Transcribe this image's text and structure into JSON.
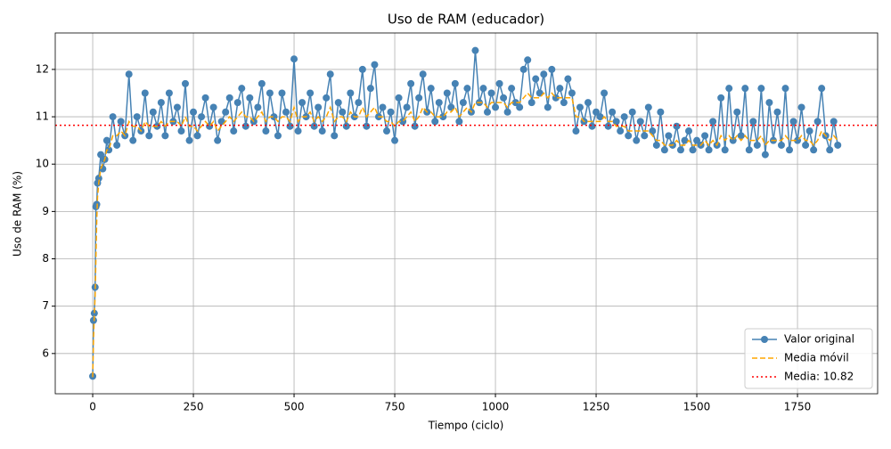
{
  "chart_data": {
    "type": "line",
    "title": "Uso de RAM (educador)",
    "xlabel": "Tiempo (ciclo)",
    "ylabel": "Uso de RAM (%)",
    "x": [
      0,
      2,
      4,
      6,
      8,
      10,
      12,
      15,
      20,
      25,
      30,
      35,
      40,
      50,
      60,
      70,
      80,
      90,
      100,
      110,
      120,
      130,
      140,
      150,
      160,
      170,
      180,
      190,
      200,
      210,
      220,
      230,
      240,
      250,
      260,
      270,
      280,
      290,
      300,
      310,
      320,
      330,
      340,
      350,
      360,
      370,
      380,
      390,
      400,
      410,
      420,
      430,
      440,
      450,
      460,
      470,
      480,
      490,
      500,
      510,
      520,
      530,
      540,
      550,
      560,
      570,
      580,
      590,
      600,
      610,
      620,
      630,
      640,
      650,
      660,
      670,
      680,
      690,
      700,
      710,
      720,
      730,
      740,
      750,
      760,
      770,
      780,
      790,
      800,
      810,
      820,
      830,
      840,
      850,
      860,
      870,
      880,
      890,
      900,
      910,
      920,
      930,
      940,
      950,
      960,
      970,
      980,
      990,
      1000,
      1010,
      1020,
      1030,
      1040,
      1050,
      1060,
      1070,
      1080,
      1090,
      1100,
      1110,
      1120,
      1130,
      1140,
      1150,
      1160,
      1170,
      1180,
      1190,
      1200,
      1210,
      1220,
      1230,
      1240,
      1250,
      1260,
      1270,
      1280,
      1290,
      1300,
      1310,
      1320,
      1330,
      1340,
      1350,
      1360,
      1370,
      1380,
      1390,
      1400,
      1410,
      1420,
      1430,
      1440,
      1450,
      1460,
      1470,
      1480,
      1490,
      1500,
      1510,
      1520,
      1530,
      1540,
      1550,
      1560,
      1570,
      1580,
      1590,
      1600,
      1610,
      1620,
      1630,
      1640,
      1650,
      1660,
      1670,
      1680,
      1690,
      1700,
      1710,
      1720,
      1730,
      1740,
      1750,
      1760,
      1770,
      1780,
      1790,
      1800,
      1810,
      1820,
      1830,
      1840,
      1850
    ],
    "series": [
      {
        "name": "Valor original",
        "color": "#4682b4",
        "style": "solid",
        "marker": true,
        "values": [
          5.52,
          6.7,
          6.85,
          7.4,
          9.1,
          9.15,
          9.6,
          9.7,
          10.2,
          9.9,
          10.1,
          10.5,
          10.3,
          11.0,
          10.4,
          10.9,
          10.6,
          11.9,
          10.5,
          11.0,
          10.7,
          11.5,
          10.6,
          11.1,
          10.8,
          11.3,
          10.6,
          11.5,
          10.9,
          11.2,
          10.7,
          11.7,
          10.5,
          11.1,
          10.6,
          11.0,
          11.4,
          10.8,
          11.2,
          10.5,
          10.9,
          11.1,
          11.4,
          10.7,
          11.3,
          11.6,
          10.8,
          11.4,
          10.9,
          11.2,
          11.7,
          10.7,
          11.5,
          11.0,
          10.6,
          11.5,
          11.1,
          10.8,
          12.22,
          10.7,
          11.3,
          11.0,
          11.5,
          10.8,
          11.2,
          10.7,
          11.4,
          11.9,
          10.6,
          11.3,
          11.1,
          10.8,
          11.5,
          11.0,
          11.3,
          12.0,
          10.8,
          11.6,
          12.1,
          11.0,
          11.2,
          10.7,
          11.1,
          10.5,
          11.4,
          10.9,
          11.2,
          11.7,
          10.8,
          11.4,
          11.9,
          11.1,
          11.6,
          10.9,
          11.3,
          11.0,
          11.5,
          11.2,
          11.7,
          10.9,
          11.3,
          11.6,
          11.1,
          12.4,
          11.3,
          11.6,
          11.1,
          11.5,
          11.2,
          11.7,
          11.4,
          11.1,
          11.6,
          11.3,
          11.2,
          12.0,
          12.2,
          11.3,
          11.8,
          11.5,
          11.9,
          11.2,
          12.0,
          11.4,
          11.6,
          11.3,
          11.8,
          11.5,
          10.7,
          11.2,
          10.9,
          11.3,
          10.8,
          11.1,
          11.0,
          11.5,
          10.8,
          11.1,
          10.9,
          10.7,
          11.0,
          10.6,
          11.1,
          10.5,
          10.9,
          10.6,
          11.2,
          10.7,
          10.4,
          11.1,
          10.3,
          10.6,
          10.4,
          10.8,
          10.3,
          10.5,
          10.7,
          10.3,
          10.5,
          10.4,
          10.6,
          10.3,
          10.9,
          10.4,
          11.4,
          10.3,
          11.6,
          10.5,
          11.1,
          10.6,
          11.6,
          10.3,
          10.9,
          10.4,
          11.6,
          10.2,
          11.3,
          10.5,
          11.1,
          10.4,
          11.6,
          10.3,
          10.9,
          10.5,
          11.2,
          10.4,
          10.7,
          10.3,
          10.9,
          11.6,
          10.6,
          10.3,
          10.9,
          10.4
        ]
      },
      {
        "name": "Media móvil",
        "color": "#ffa500",
        "style": "dashed",
        "marker": false,
        "values": [
          5.5,
          6.3,
          6.8,
          7.2,
          8.0,
          8.8,
          9.3,
          9.6,
          9.9,
          10.0,
          10.1,
          10.3,
          10.3,
          10.6,
          10.6,
          10.7,
          10.6,
          10.9,
          10.8,
          10.8,
          10.7,
          10.9,
          10.8,
          10.8,
          10.8,
          10.9,
          10.8,
          10.9,
          10.9,
          10.9,
          10.8,
          11.0,
          10.8,
          10.8,
          10.7,
          10.8,
          10.9,
          10.8,
          10.9,
          10.7,
          10.8,
          10.9,
          11.0,
          10.9,
          11.0,
          11.1,
          11.0,
          11.0,
          10.9,
          11.0,
          11.1,
          10.9,
          11.0,
          11.0,
          10.9,
          11.0,
          11.0,
          10.9,
          11.2,
          10.9,
          11.0,
          11.0,
          11.1,
          10.9,
          11.0,
          10.9,
          11.0,
          11.2,
          10.9,
          11.0,
          11.0,
          10.9,
          11.1,
          11.0,
          11.0,
          11.2,
          11.0,
          11.1,
          11.2,
          11.0,
          11.0,
          10.9,
          10.9,
          10.8,
          10.9,
          10.9,
          11.0,
          11.1,
          10.9,
          11.0,
          11.2,
          11.1,
          11.1,
          11.0,
          11.0,
          11.0,
          11.1,
          11.1,
          11.2,
          11.0,
          11.1,
          11.2,
          11.1,
          11.3,
          11.3,
          11.3,
          11.2,
          11.3,
          11.3,
          11.3,
          11.3,
          11.2,
          11.3,
          11.3,
          11.3,
          11.4,
          11.5,
          11.4,
          11.4,
          11.4,
          11.5,
          11.4,
          11.5,
          11.4,
          11.4,
          11.4,
          11.4,
          11.4,
          11.0,
          11.0,
          10.9,
          10.9,
          10.9,
          10.9,
          10.9,
          11.0,
          10.9,
          10.9,
          10.8,
          10.8,
          10.8,
          10.7,
          10.7,
          10.7,
          10.7,
          10.7,
          10.7,
          10.6,
          10.5,
          10.5,
          10.4,
          10.4,
          10.4,
          10.5,
          10.4,
          10.4,
          10.5,
          10.4,
          10.4,
          10.4,
          10.5,
          10.4,
          10.5,
          10.4,
          10.6,
          10.5,
          10.6,
          10.5,
          10.6,
          10.5,
          10.6,
          10.5,
          10.5,
          10.5,
          10.6,
          10.4,
          10.5,
          10.5,
          10.5,
          10.5,
          10.6,
          10.5,
          10.5,
          10.5,
          10.6,
          10.5,
          10.5,
          10.4,
          10.5,
          10.7,
          10.6,
          10.5,
          10.6,
          10.5
        ]
      }
    ],
    "hlines": [
      {
        "name": "Media: 10.82",
        "value": 10.82,
        "color": "#ff0000",
        "style": "dotted"
      }
    ],
    "xlim": [
      -93,
      1949
    ],
    "xticks": [
      0,
      250,
      500,
      750,
      1000,
      1250,
      1500,
      1750
    ],
    "ylim": [
      5.15,
      12.77
    ],
    "yticks": [
      6,
      7,
      8,
      9,
      10,
      11,
      12
    ],
    "grid": true,
    "legend": "lower right"
  }
}
